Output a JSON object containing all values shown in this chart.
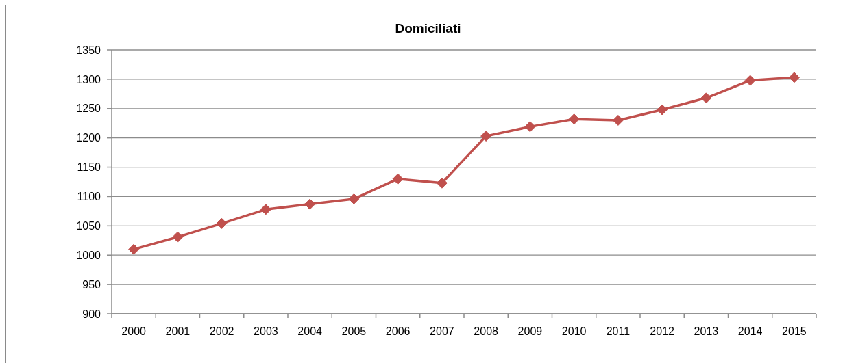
{
  "chart_data": {
    "type": "line",
    "title": "Domiciliati",
    "categories": [
      "2000",
      "2001",
      "2002",
      "2003",
      "2004",
      "2005",
      "2006",
      "2007",
      "2008",
      "2009",
      "2010",
      "2011",
      "2012",
      "2013",
      "2014",
      "2015"
    ],
    "series": [
      {
        "color": "#c0504d",
        "values": [
          1010,
          1031,
          1054,
          1078,
          1087,
          1096,
          1130,
          1123,
          1203,
          1219,
          1232,
          1230,
          1248,
          1268,
          1298,
          1303
        ]
      }
    ],
    "ylim": [
      900,
      1350
    ],
    "yticks": [
      900,
      950,
      1000,
      1050,
      1100,
      1150,
      1200,
      1250,
      1300,
      1350
    ],
    "grid": "y",
    "marker": "diamond",
    "line_style": "solid"
  }
}
